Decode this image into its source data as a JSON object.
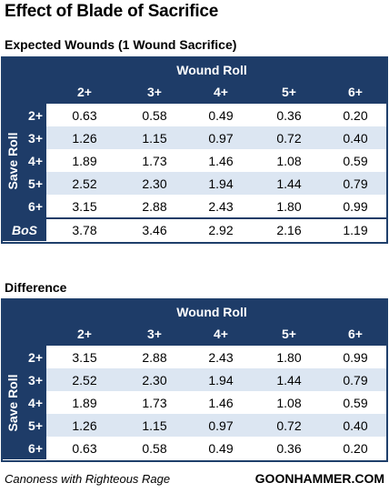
{
  "title": "Effect of Blade of Sacrifice",
  "table1": {
    "subtitle": "Expected Wounds (1 Wound Sacrifice)",
    "header": "Wound Roll",
    "side_title": "Save Roll",
    "columns": [
      "2+",
      "3+",
      "4+",
      "5+",
      "6+"
    ],
    "rows": [
      {
        "label": "2+",
        "values": [
          "0.63",
          "0.58",
          "0.49",
          "0.36",
          "0.20"
        ]
      },
      {
        "label": "3+",
        "values": [
          "1.26",
          "1.15",
          "0.97",
          "0.72",
          "0.40"
        ]
      },
      {
        "label": "4+",
        "values": [
          "1.89",
          "1.73",
          "1.46",
          "1.08",
          "0.59"
        ]
      },
      {
        "label": "5+",
        "values": [
          "2.52",
          "2.30",
          "1.94",
          "1.44",
          "0.79"
        ]
      },
      {
        "label": "6+",
        "values": [
          "3.15",
          "2.88",
          "2.43",
          "1.80",
          "0.99"
        ]
      }
    ],
    "bos": {
      "label": "BoS",
      "values": [
        "3.78",
        "3.46",
        "2.92",
        "2.16",
        "1.19"
      ]
    }
  },
  "table2": {
    "subtitle": "Difference",
    "header": "Wound Roll",
    "side_title": "Save Roll",
    "columns": [
      "2+",
      "3+",
      "4+",
      "5+",
      "6+"
    ],
    "rows": [
      {
        "label": "2+",
        "values": [
          "3.15",
          "2.88",
          "2.43",
          "1.80",
          "0.99"
        ]
      },
      {
        "label": "3+",
        "values": [
          "2.52",
          "2.30",
          "1.94",
          "1.44",
          "0.79"
        ]
      },
      {
        "label": "4+",
        "values": [
          "1.89",
          "1.73",
          "1.46",
          "1.08",
          "0.59"
        ]
      },
      {
        "label": "5+",
        "values": [
          "1.26",
          "1.15",
          "0.97",
          "0.72",
          "0.40"
        ]
      },
      {
        "label": "6+",
        "values": [
          "0.63",
          "0.58",
          "0.49",
          "0.36",
          "0.20"
        ]
      }
    ]
  },
  "footer": {
    "left": "Canoness with Righteous Rage",
    "right": "GOONHAMMER.COM"
  },
  "colors": {
    "header_bg": "#1e3c68",
    "alt_row": "#dce6f2"
  }
}
